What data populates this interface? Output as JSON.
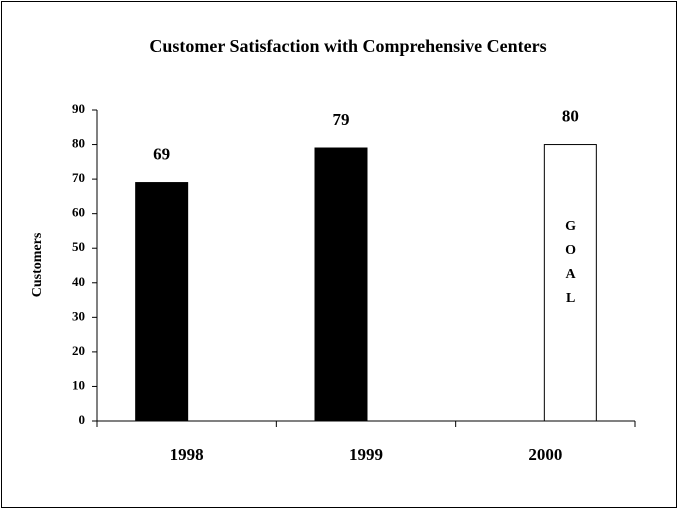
{
  "chart_data": {
    "type": "bar",
    "title": "Customer Satisfaction with Comprehensive Centers",
    "y_label": "Customers",
    "categories": [
      "1998",
      "1999",
      "2000"
    ],
    "values": [
      69,
      79,
      80
    ],
    "colors": [
      "#000000",
      "#000000",
      "#ffffff"
    ],
    "annotation": "GOAL",
    "ylim": [
      0,
      90
    ],
    "yticks": [
      0,
      10,
      20,
      30,
      40,
      50,
      60,
      70,
      80,
      90
    ],
    "grid": false
  }
}
